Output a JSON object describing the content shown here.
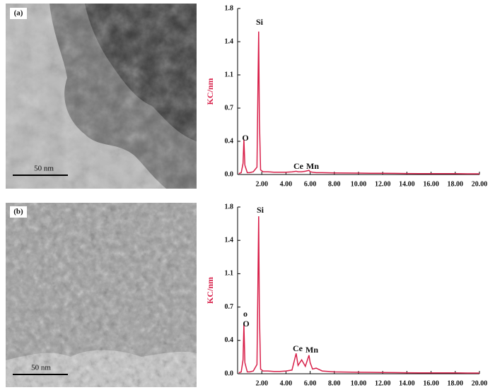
{
  "panels": [
    {
      "label": "(a)",
      "scale_bar": "50 nm"
    },
    {
      "label": "(b)",
      "scale_bar": "50 nm"
    }
  ],
  "chart_data": [
    {
      "type": "line",
      "ylabel": "KC/nm",
      "color": "#d8204a",
      "xlim": [
        0,
        20
      ],
      "ylim": [
        0,
        1.8
      ],
      "xticks": [
        {
          "value": 2,
          "label": "2.00"
        },
        {
          "value": 4,
          "label": "4.00"
        },
        {
          "value": 6,
          "label": "6.00"
        },
        {
          "value": 8,
          "label": "8.00"
        },
        {
          "value": 10,
          "label": "10.00"
        },
        {
          "value": 12,
          "label": "12.00"
        },
        {
          "value": 14,
          "label": "14.00"
        },
        {
          "value": 16,
          "label": "16.00"
        },
        {
          "value": 18,
          "label": "18.00"
        },
        {
          "value": 20,
          "label": "20.00"
        }
      ],
      "yticks": [
        {
          "value": 0,
          "label": "0.0"
        },
        {
          "value": 0.36,
          "label": "0.4"
        },
        {
          "value": 0.72,
          "label": "0.7"
        },
        {
          "value": 1.08,
          "label": "1.1"
        },
        {
          "value": 1.44,
          "label": "1.4"
        },
        {
          "value": 1.8,
          "label": "1.8"
        }
      ],
      "x": [
        0.1,
        0.3,
        0.45,
        0.52,
        0.6,
        0.8,
        1.0,
        1.3,
        1.6,
        1.68,
        1.74,
        1.8,
        1.9,
        2.1,
        2.5,
        3.0,
        3.5,
        4.0,
        4.5,
        4.84,
        5.0,
        5.3,
        5.6,
        5.9,
        6.0,
        6.2,
        6.5,
        7,
        8,
        9,
        10,
        11,
        12,
        13,
        14,
        15,
        16,
        17,
        18,
        19,
        20
      ],
      "values": [
        0.01,
        0.02,
        0.12,
        0.38,
        0.1,
        0.02,
        0.02,
        0.03,
        0.08,
        0.9,
        1.55,
        0.6,
        0.05,
        0.03,
        0.03,
        0.025,
        0.025,
        0.025,
        0.028,
        0.035,
        0.03,
        0.03,
        0.035,
        0.045,
        0.03,
        0.025,
        0.02,
        0.02,
        0.018,
        0.016,
        0.015,
        0.014,
        0.013,
        0.012,
        0.011,
        0.01,
        0.01,
        0.009,
        0.009,
        0.008,
        0.008
      ],
      "annotations": [
        "O",
        "Si",
        "Ce",
        "Mn"
      ]
    },
    {
      "type": "line",
      "ylabel": "KC/nm",
      "color": "#d8204a",
      "xlim": [
        0,
        20
      ],
      "ylim": [
        0,
        1.8
      ],
      "xticks": [
        {
          "value": 2,
          "label": "2.00"
        },
        {
          "value": 4,
          "label": "4.00"
        },
        {
          "value": 6,
          "label": "6.00"
        },
        {
          "value": 8,
          "label": "8.00"
        },
        {
          "value": 10,
          "label": "10.00"
        },
        {
          "value": 12,
          "label": "12.00"
        },
        {
          "value": 14,
          "label": "14.00"
        },
        {
          "value": 16,
          "label": "16.00"
        },
        {
          "value": 18,
          "label": "18.00"
        },
        {
          "value": 20,
          "label": "20.00"
        }
      ],
      "yticks": [
        {
          "value": 0,
          "label": "0.0"
        },
        {
          "value": 0.36,
          "label": "0.4"
        },
        {
          "value": 0.72,
          "label": "0.7"
        },
        {
          "value": 1.08,
          "label": "1.1"
        },
        {
          "value": 1.44,
          "label": "1.4"
        },
        {
          "value": 1.8,
          "label": "1.8"
        }
      ],
      "x": [
        0.1,
        0.3,
        0.45,
        0.52,
        0.6,
        0.8,
        1.0,
        1.3,
        1.6,
        1.68,
        1.74,
        1.8,
        1.9,
        2.1,
        2.5,
        3.0,
        3.5,
        4.0,
        4.5,
        4.84,
        5.0,
        5.3,
        5.6,
        5.9,
        6.0,
        6.2,
        6.5,
        7,
        8,
        9,
        10,
        11,
        12,
        13,
        14,
        15,
        16,
        17,
        18,
        19,
        20
      ],
      "values": [
        0.01,
        0.02,
        0.15,
        0.53,
        0.12,
        0.02,
        0.02,
        0.03,
        0.1,
        0.95,
        1.7,
        0.65,
        0.05,
        0.03,
        0.03,
        0.025,
        0.025,
        0.03,
        0.04,
        0.22,
        0.09,
        0.15,
        0.08,
        0.2,
        0.12,
        0.05,
        0.06,
        0.03,
        0.02,
        0.018,
        0.016,
        0.015,
        0.014,
        0.012,
        0.011,
        0.01,
        0.01,
        0.009,
        0.009,
        0.008,
        0.008
      ],
      "annotations": [
        "o",
        "O",
        "Si",
        "Ce",
        "Mn"
      ]
    }
  ]
}
